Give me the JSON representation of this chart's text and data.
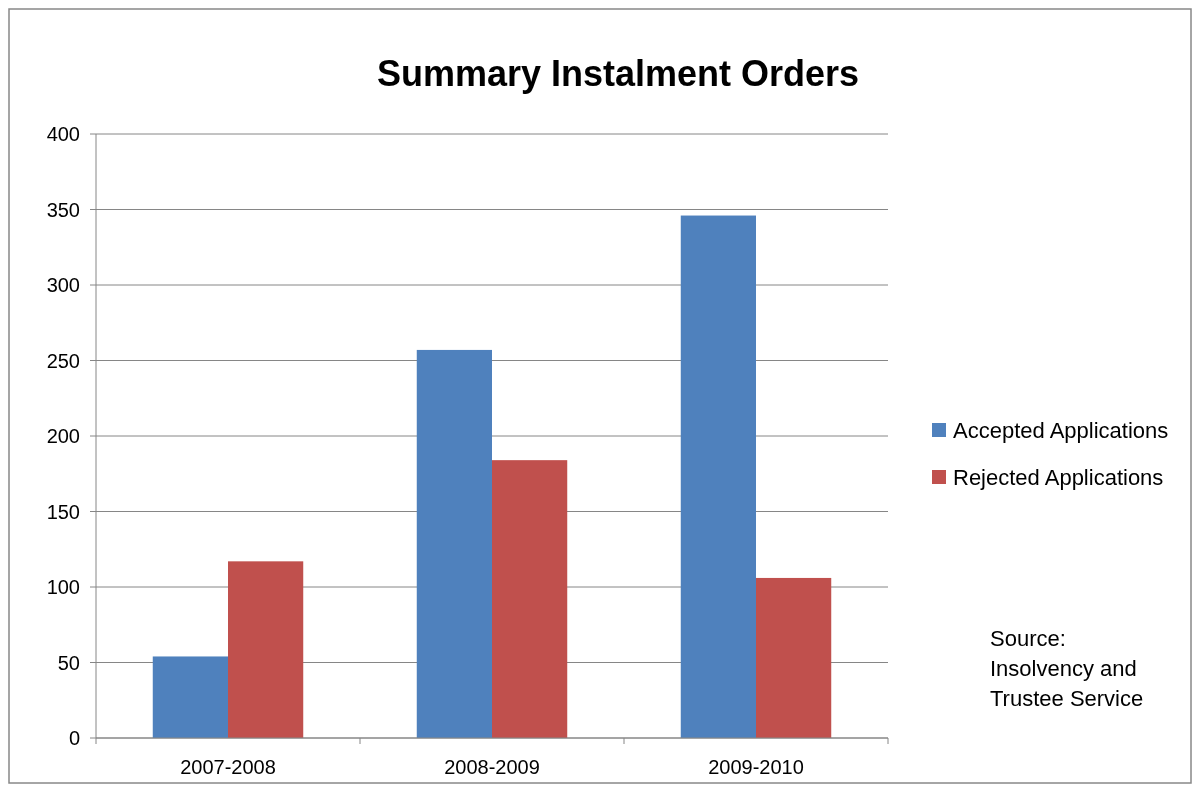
{
  "chart_data": {
    "type": "bar",
    "title": "Summary Instalment Orders",
    "categories": [
      "2007-2008",
      "2008-2009",
      "2009-2010"
    ],
    "series": [
      {
        "name": "Accepted Applications",
        "color": "#4f81bd",
        "values": [
          54,
          257,
          346
        ]
      },
      {
        "name": "Rejected Applications",
        "color": "#c0504d",
        "values": [
          117,
          184,
          106
        ]
      }
    ],
    "ylim": [
      0,
      400
    ],
    "yticks": [
      0,
      50,
      100,
      150,
      200,
      250,
      300,
      350,
      400
    ],
    "grid": "y",
    "legend": "right",
    "annotations": [
      "Source: Insolvency and Trustee Service"
    ]
  }
}
